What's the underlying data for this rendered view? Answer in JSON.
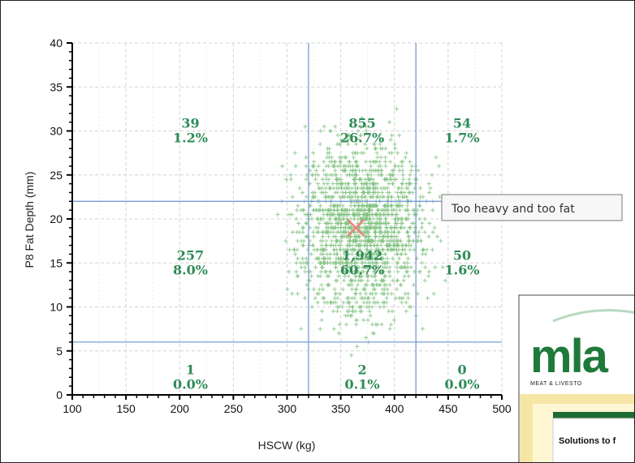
{
  "chart_data": {
    "type": "scatter",
    "xlabel": "HSCW (kg)",
    "ylabel": "P8 Fat Depth (mm)",
    "xlim": [
      100,
      500
    ],
    "ylim": [
      0,
      40
    ],
    "x_ticks": [
      "100",
      "150",
      "200",
      "250",
      "300",
      "350",
      "400",
      "450",
      "500"
    ],
    "y_ticks": [
      "0",
      "5",
      "10",
      "15",
      "20",
      "25",
      "30",
      "35",
      "40"
    ],
    "grid": true,
    "thresholds": {
      "x": [
        320,
        420
      ],
      "y": [
        6,
        22
      ]
    },
    "mean_marker": {
      "x": 364,
      "y": 19
    },
    "point_cloud": {
      "x_center": 370,
      "x_spread": 38,
      "y_center": 19,
      "y_spread": 6
    },
    "cells": [
      {
        "id": "top-left",
        "count": "39",
        "percent": "1.2%",
        "x": 210,
        "y": 30
      },
      {
        "id": "top-middle",
        "count": "855",
        "percent": "26.7%",
        "x": 370,
        "y": 30
      },
      {
        "id": "top-right",
        "count": "54",
        "percent": "1.7%",
        "x": 463,
        "y": 30
      },
      {
        "id": "middle-left",
        "count": "257",
        "percent": "8.0%",
        "x": 210,
        "y": 15
      },
      {
        "id": "middle-center",
        "count": "1,942",
        "percent": "60.7%",
        "x": 370,
        "y": 15
      },
      {
        "id": "middle-right",
        "count": "50",
        "percent": "1.6%",
        "x": 463,
        "y": 15
      },
      {
        "id": "bottom-left",
        "count": "1",
        "percent": "0.0%",
        "x": 210,
        "y": 2
      },
      {
        "id": "bottom-middle",
        "count": "2",
        "percent": "0.1%",
        "x": 370,
        "y": 2
      },
      {
        "id": "bottom-right",
        "count": "0",
        "percent": "0.0%",
        "x": 463,
        "y": 2
      }
    ]
  },
  "tooltip": {
    "text": "Too heavy and too fat"
  },
  "overlay": {
    "logo_text": "mla",
    "subtitle": "MEAT & LIVESTO",
    "tab_text": "Solutions to f"
  },
  "colors": {
    "points": "#7ec07e",
    "threshold_lines": "#7a9cd6",
    "labels": "#2e8b57",
    "marker": "#f08080",
    "logo_green": "#1f7a3a"
  }
}
